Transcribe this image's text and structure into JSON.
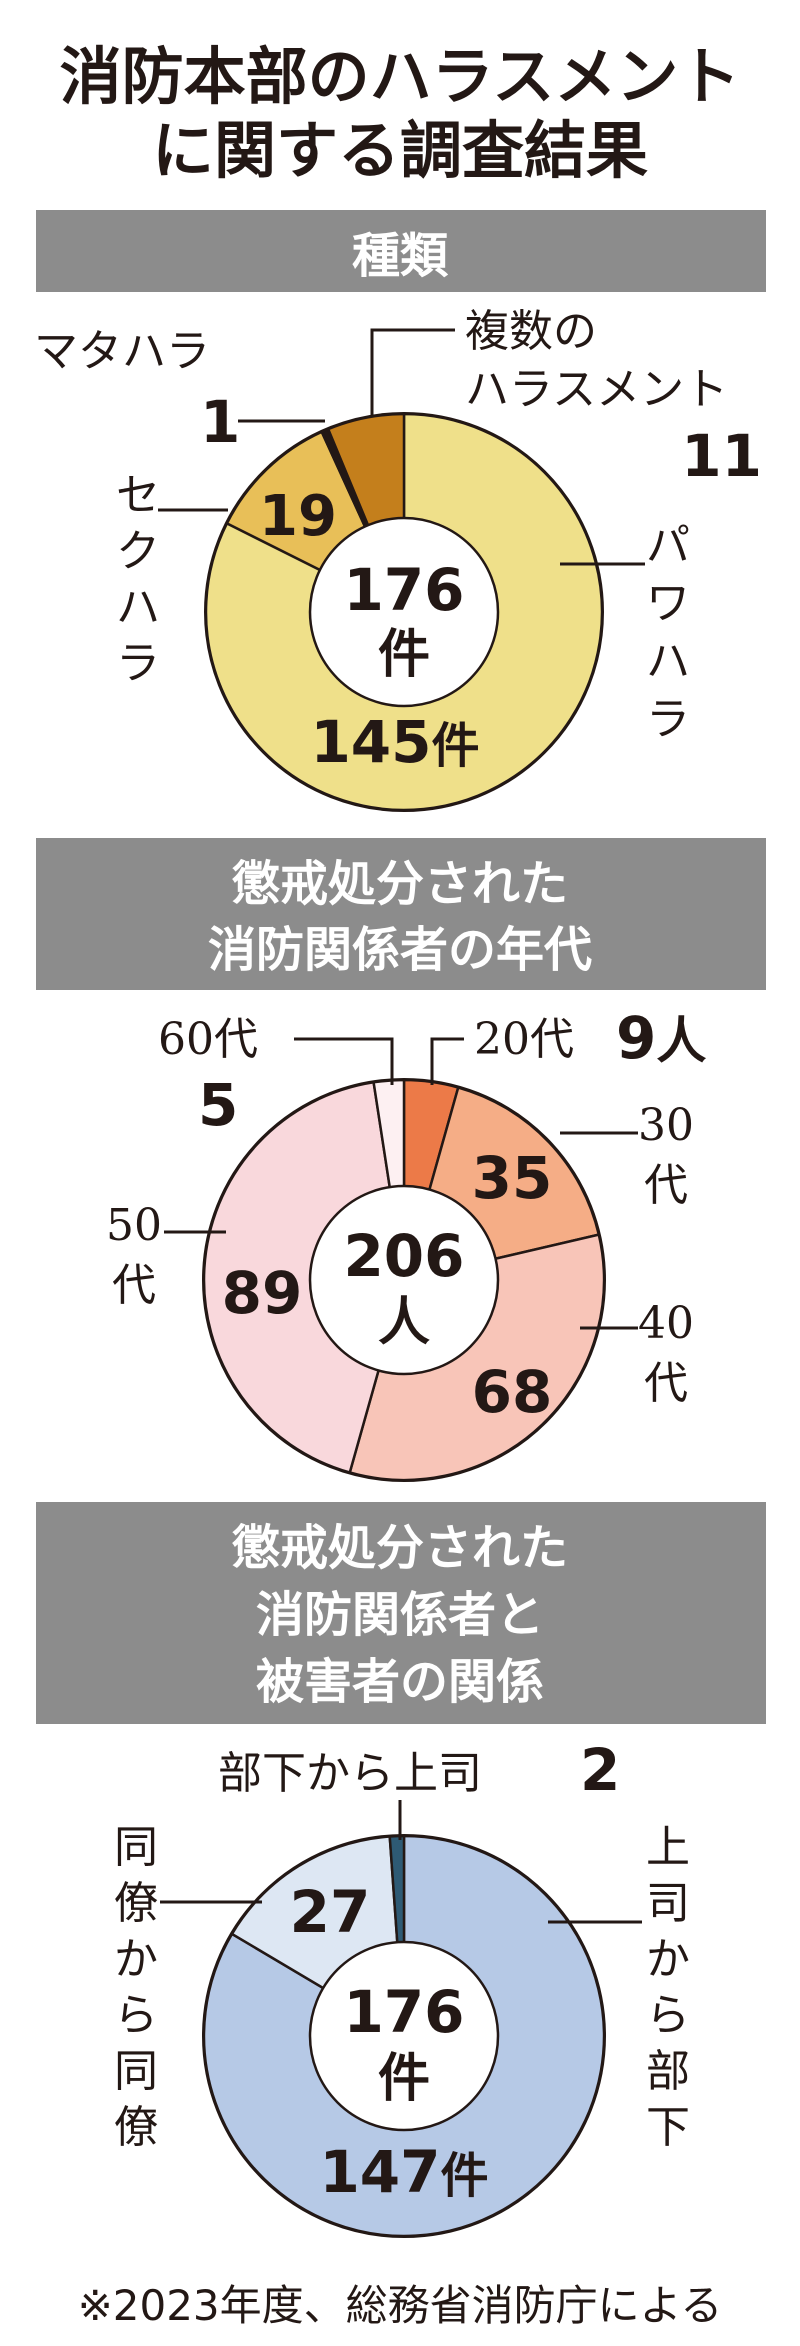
{
  "title_lines": [
    "消防本部のハラスメント",
    "に関する調査結果"
  ],
  "footnote": "※2023年度、総務省消防庁による",
  "colors": {
    "header_bg": "#8c8c8c",
    "power": "#efe08a",
    "sexual": "#e8bf58",
    "maternity": "#231815",
    "multiple": "#c47f1c",
    "age20": "#ec7a48",
    "age30": "#f5ad86",
    "age40": "#f8c5b8",
    "age50": "#f9d8dc",
    "age60": "#fdf0f2",
    "sub_to_boss": "#2e5a74",
    "boss_to_sub": "#b6c9e6",
    "peer": "#dde7f3"
  },
  "chart_data": [
    {
      "type": "pie",
      "title": "種類",
      "center_lines": [
        "176",
        "件"
      ],
      "slices": [
        {
          "label": "パワハラ",
          "value": 145,
          "value_text": "145",
          "unit": "件"
        },
        {
          "label": "セクハラ",
          "value": 19,
          "value_text": "19"
        },
        {
          "label": "マタハラ",
          "value": 1,
          "value_text": "1"
        },
        {
          "label": "複数のハラスメント",
          "value": 11,
          "value_text": "11"
        }
      ]
    },
    {
      "type": "pie",
      "title_lines": [
        "懲戒処分された",
        "消防関係者の年代"
      ],
      "center_lines": [
        "206",
        "人"
      ],
      "slices": [
        {
          "label": "20代",
          "value": 9,
          "value_text": "9",
          "unit": "人"
        },
        {
          "label": "30代",
          "value": 35,
          "value_text": "35"
        },
        {
          "label": "40代",
          "value": 68,
          "value_text": "68"
        },
        {
          "label": "50代",
          "value": 89,
          "value_text": "89"
        },
        {
          "label": "60代",
          "value": 5,
          "value_text": "5"
        }
      ]
    },
    {
      "type": "pie",
      "title_lines": [
        "懲戒処分された",
        "消防関係者と",
        "被害者の関係"
      ],
      "center_lines": [
        "176",
        "件"
      ],
      "slices": [
        {
          "label": "上司から部下",
          "value": 147,
          "value_text": "147",
          "unit": "件"
        },
        {
          "label": "同僚から同僚",
          "value": 27,
          "value_text": "27"
        },
        {
          "label": "部下から上司",
          "value": 2,
          "value_text": "2"
        }
      ]
    }
  ]
}
